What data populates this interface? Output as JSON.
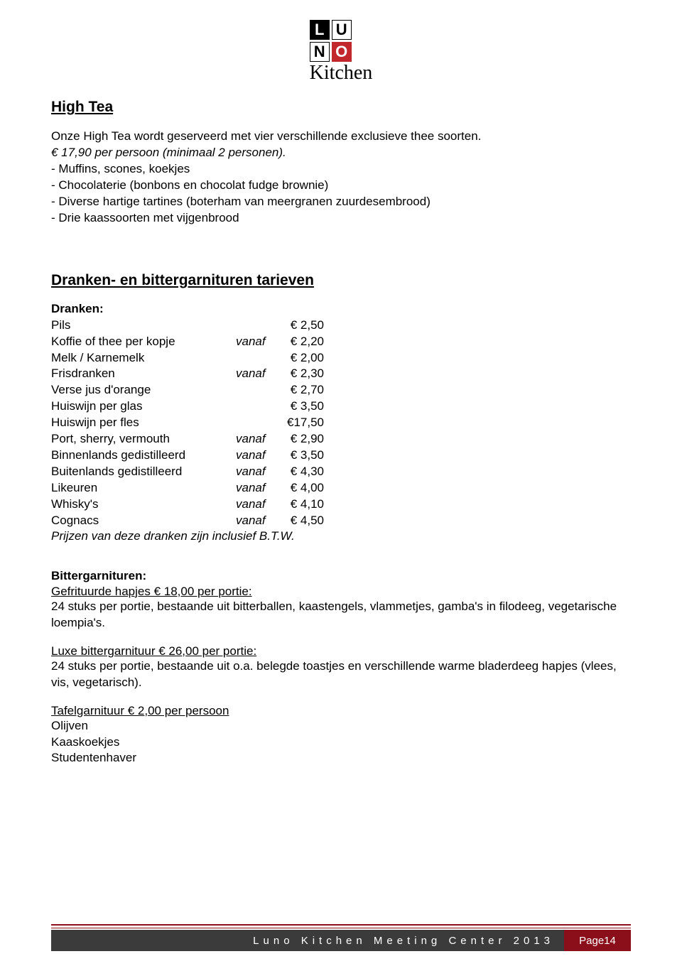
{
  "logo": {
    "letters": [
      "L",
      "U",
      "N",
      "O"
    ],
    "script": "Kitchen",
    "cell_colors": [
      "#000000",
      "#ffffff",
      "#ffffff",
      "#c1272d"
    ]
  },
  "high_tea": {
    "title": "High Tea",
    "intro_line": "Onze High Tea wordt geserveerd met vier verschillende exclusieve thee soorten.",
    "price_line": "€ 17,90 per persoon (minimaal 2 personen).",
    "bullets": [
      "- Muffins, scones, koekjes",
      "- Chocolaterie (bonbons en chocolat fudge brownie)",
      "- Diverse hartige tartines (boterham van meergranen zuurdesembrood)",
      "- Drie kaassoorten met vijgenbrood"
    ]
  },
  "dranken": {
    "title": "Dranken- en bittergarnituren tarieven",
    "subheading": "Dranken:",
    "rows": [
      {
        "label": "Pils",
        "vanaf": "",
        "value": "€ 2,50"
      },
      {
        "label": "Koffie of thee per kopje",
        "vanaf": "vanaf",
        "value": "€ 2,20"
      },
      {
        "label": "Melk / Karnemelk",
        "vanaf": "",
        "value": "€ 2,00"
      },
      {
        "label": "Frisdranken",
        "vanaf": "vanaf",
        "value": "€ 2,30"
      },
      {
        "label": "Verse jus d'orange",
        "vanaf": "",
        "value": "€ 2,70"
      },
      {
        "label": "Huiswijn per glas",
        "vanaf": "",
        "value": "€ 3,50"
      },
      {
        "label": "Huiswijn per fles",
        "vanaf": "",
        "value": "€17,50"
      },
      {
        "label": "Port, sherry, vermouth",
        "vanaf": "vanaf",
        "value": "€ 2,90"
      },
      {
        "label": "Binnenlands gedistilleerd",
        "vanaf": "vanaf",
        "value": "€ 3,50"
      },
      {
        "label": "Buitenlands gedistilleerd",
        "vanaf": "vanaf",
        "value": "€ 4,30"
      },
      {
        "label": "Likeuren",
        "vanaf": "vanaf",
        "value": "€ 4,00"
      },
      {
        "label": "Whisky's",
        "vanaf": "vanaf",
        "value": "€ 4,10"
      },
      {
        "label": "Cognacs",
        "vanaf": "vanaf",
        "value": "€ 4,50"
      }
    ],
    "note": "Prijzen van deze dranken zijn inclusief B.T.W."
  },
  "bitter": {
    "subheading": "Bittergarnituren:",
    "item1_title": "Gefrituurde hapjes € 18,00 per portie:",
    "item1_body": "24 stuks per portie, bestaande uit bitterballen, kaastengels, vlammetjes, gamba's in filodeeg, vegetarische loempia's.",
    "item2_title": "Luxe bittergarnituur € 26,00 per portie:",
    "item2_body": "24 stuks per portie, bestaande uit o.a. belegde toastjes en verschillende warme bladerdeeg hapjes (vlees, vis, vegetarisch).",
    "item3_title": "Tafelgarnituur € 2,00 per persoon",
    "item3_lines": [
      "Olijven",
      "Kaaskoekjes",
      "Studentenhaver"
    ]
  },
  "footer": {
    "left": "Luno Kitchen Meeting Center 2013",
    "right": "Page14",
    "bar_left_color": "#3b3b3b",
    "bar_right_color": "#8a0f1a",
    "line_color": "#8a0f1a"
  }
}
